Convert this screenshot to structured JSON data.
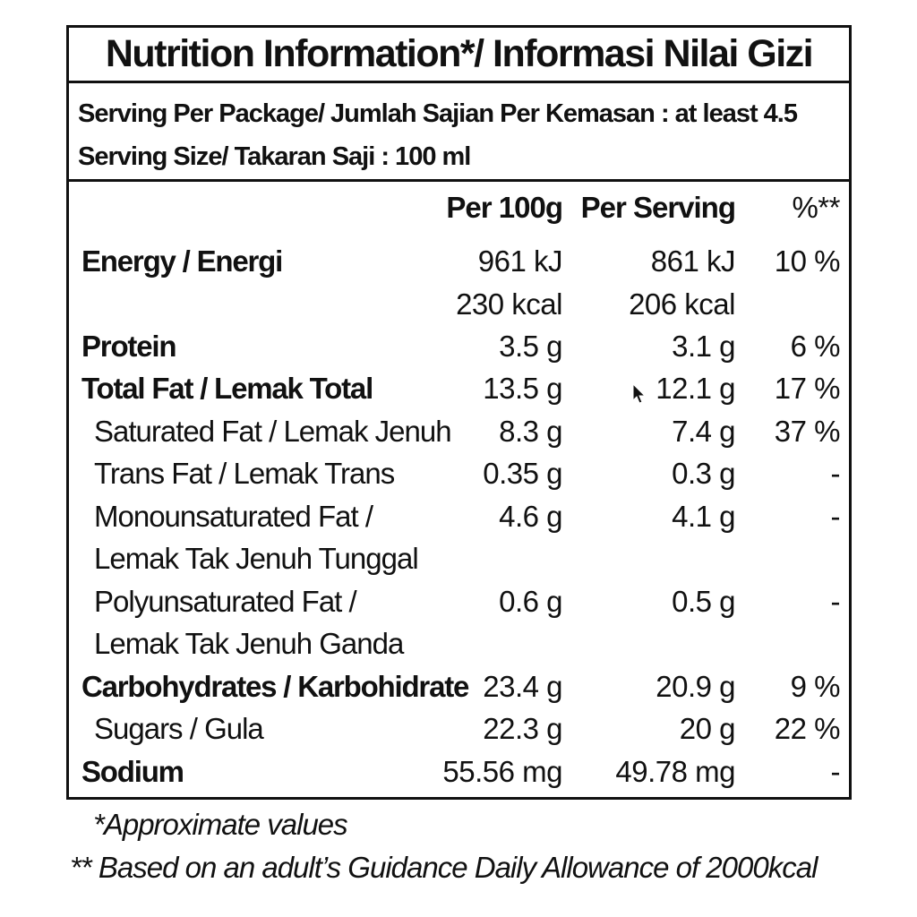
{
  "title": "Nutrition Information*/  Informasi Nilai Gizi",
  "serving": {
    "per_package": "Serving Per Package/ Jumlah Sajian Per Kemasan : at least 4.5",
    "size": "Serving Size/ Takaran Saji : 100 ml"
  },
  "headers": {
    "per100": "Per 100g",
    "perServing": "Per Serving",
    "pct": "%**"
  },
  "rows": [
    {
      "label": "Energy / Energi",
      "per100": "961 kJ",
      "perServing": "861 kJ",
      "pct": "10 %"
    },
    {
      "label": "",
      "per100": "230 kcal",
      "perServing": "206 kcal",
      "pct": ""
    },
    {
      "label": "Protein",
      "per100": "3.5 g",
      "perServing": "3.1 g",
      "pct": "6 %"
    },
    {
      "label": "Total Fat / Lemak Total",
      "per100": "13.5 g",
      "perServing": "12.1 g",
      "pct": "17 %"
    },
    {
      "label": "Saturated Fat / Lemak Jenuh",
      "per100": "8.3 g",
      "perServing": "7.4 g",
      "pct": "37 %"
    },
    {
      "label": "Trans Fat / Lemak Trans",
      "per100": "0.35 g",
      "perServing": "0.3 g",
      "pct": "-"
    },
    {
      "label": "Monounsaturated Fat /",
      "per100": "4.6 g",
      "perServing": "4.1 g",
      "pct": "-"
    },
    {
      "label": "Lemak Tak Jenuh Tunggal",
      "per100": "",
      "perServing": "",
      "pct": ""
    },
    {
      "label": "Polyunsaturated Fat /",
      "per100": "0.6 g",
      "perServing": "0.5 g",
      "pct": "-"
    },
    {
      "label": "Lemak Tak Jenuh Ganda",
      "per100": "",
      "perServing": "",
      "pct": ""
    },
    {
      "label": "Carbohydrates / Karbohidrate",
      "per100": "23.4 g",
      "perServing": "20.9 g",
      "pct": "9 %"
    },
    {
      "label": "Sugars / Gula",
      "per100": "22.3 g",
      "perServing": "20 g",
      "pct": "22 %"
    },
    {
      "label": "Sodium",
      "per100": "55.56 mg",
      "perServing": "49.78 mg",
      "pct": "-"
    }
  ],
  "footnotes": {
    "approx": "*Approximate values",
    "gda": "** Based on an adult’s Guidance Daily Allowance of 2000kcal"
  },
  "icons": {
    "cursor": "mouse-pointer-icon"
  }
}
